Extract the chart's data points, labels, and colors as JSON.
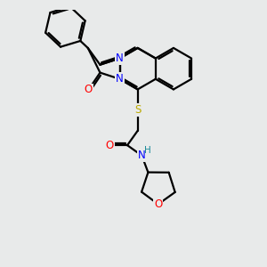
{
  "bg_color": "#e8eaea",
  "atom_colors": {
    "C": "#000000",
    "N": "#0000ff",
    "O": "#ff0000",
    "S": "#bbaa00",
    "H": "#1a8a99"
  },
  "bond_color": "#000000",
  "bond_width": 1.6,
  "font_size": 9
}
